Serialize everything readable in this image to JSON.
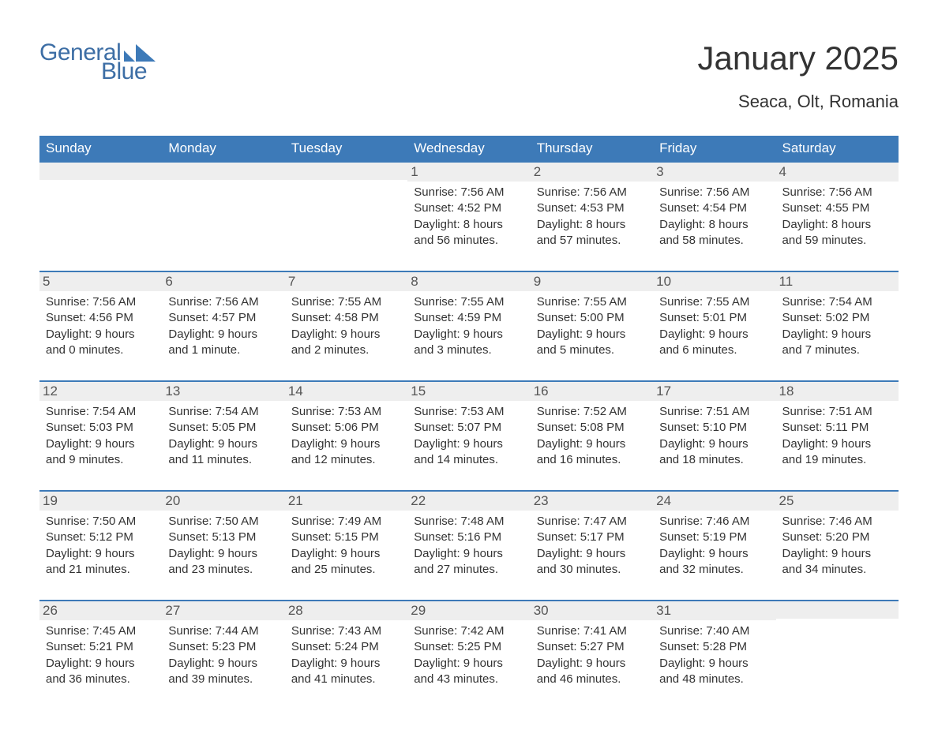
{
  "logo": {
    "text_general": "General",
    "text_blue": "Blue",
    "shape_color": "#3d7ab8"
  },
  "title": "January 2025",
  "location": "Seaca, Olt, Romania",
  "colors": {
    "header_bg": "#3d7ab8",
    "header_text": "#ffffff",
    "daynum_bg": "#eeeeee",
    "daynum_border": "#3d7ab8",
    "body_text": "#333333",
    "logo_text": "#3d6ea5",
    "background": "#ffffff"
  },
  "typography": {
    "title_fontsize": 42,
    "location_fontsize": 22,
    "dow_fontsize": 17,
    "daynum_fontsize": 17,
    "detail_fontsize": 15
  },
  "days_of_week": [
    "Sunday",
    "Monday",
    "Tuesday",
    "Wednesday",
    "Thursday",
    "Friday",
    "Saturday"
  ],
  "weeks": [
    [
      null,
      null,
      null,
      {
        "n": "1",
        "sunrise": "7:56 AM",
        "sunset": "4:52 PM",
        "daylight1": "Daylight: 8 hours",
        "daylight2": "and 56 minutes."
      },
      {
        "n": "2",
        "sunrise": "7:56 AM",
        "sunset": "4:53 PM",
        "daylight1": "Daylight: 8 hours",
        "daylight2": "and 57 minutes."
      },
      {
        "n": "3",
        "sunrise": "7:56 AM",
        "sunset": "4:54 PM",
        "daylight1": "Daylight: 8 hours",
        "daylight2": "and 58 minutes."
      },
      {
        "n": "4",
        "sunrise": "7:56 AM",
        "sunset": "4:55 PM",
        "daylight1": "Daylight: 8 hours",
        "daylight2": "and 59 minutes."
      }
    ],
    [
      {
        "n": "5",
        "sunrise": "7:56 AM",
        "sunset": "4:56 PM",
        "daylight1": "Daylight: 9 hours",
        "daylight2": "and 0 minutes."
      },
      {
        "n": "6",
        "sunrise": "7:56 AM",
        "sunset": "4:57 PM",
        "daylight1": "Daylight: 9 hours",
        "daylight2": "and 1 minute."
      },
      {
        "n": "7",
        "sunrise": "7:55 AM",
        "sunset": "4:58 PM",
        "daylight1": "Daylight: 9 hours",
        "daylight2": "and 2 minutes."
      },
      {
        "n": "8",
        "sunrise": "7:55 AM",
        "sunset": "4:59 PM",
        "daylight1": "Daylight: 9 hours",
        "daylight2": "and 3 minutes."
      },
      {
        "n": "9",
        "sunrise": "7:55 AM",
        "sunset": "5:00 PM",
        "daylight1": "Daylight: 9 hours",
        "daylight2": "and 5 minutes."
      },
      {
        "n": "10",
        "sunrise": "7:55 AM",
        "sunset": "5:01 PM",
        "daylight1": "Daylight: 9 hours",
        "daylight2": "and 6 minutes."
      },
      {
        "n": "11",
        "sunrise": "7:54 AM",
        "sunset": "5:02 PM",
        "daylight1": "Daylight: 9 hours",
        "daylight2": "and 7 minutes."
      }
    ],
    [
      {
        "n": "12",
        "sunrise": "7:54 AM",
        "sunset": "5:03 PM",
        "daylight1": "Daylight: 9 hours",
        "daylight2": "and 9 minutes."
      },
      {
        "n": "13",
        "sunrise": "7:54 AM",
        "sunset": "5:05 PM",
        "daylight1": "Daylight: 9 hours",
        "daylight2": "and 11 minutes."
      },
      {
        "n": "14",
        "sunrise": "7:53 AM",
        "sunset": "5:06 PM",
        "daylight1": "Daylight: 9 hours",
        "daylight2": "and 12 minutes."
      },
      {
        "n": "15",
        "sunrise": "7:53 AM",
        "sunset": "5:07 PM",
        "daylight1": "Daylight: 9 hours",
        "daylight2": "and 14 minutes."
      },
      {
        "n": "16",
        "sunrise": "7:52 AM",
        "sunset": "5:08 PM",
        "daylight1": "Daylight: 9 hours",
        "daylight2": "and 16 minutes."
      },
      {
        "n": "17",
        "sunrise": "7:51 AM",
        "sunset": "5:10 PM",
        "daylight1": "Daylight: 9 hours",
        "daylight2": "and 18 minutes."
      },
      {
        "n": "18",
        "sunrise": "7:51 AM",
        "sunset": "5:11 PM",
        "daylight1": "Daylight: 9 hours",
        "daylight2": "and 19 minutes."
      }
    ],
    [
      {
        "n": "19",
        "sunrise": "7:50 AM",
        "sunset": "5:12 PM",
        "daylight1": "Daylight: 9 hours",
        "daylight2": "and 21 minutes."
      },
      {
        "n": "20",
        "sunrise": "7:50 AM",
        "sunset": "5:13 PM",
        "daylight1": "Daylight: 9 hours",
        "daylight2": "and 23 minutes."
      },
      {
        "n": "21",
        "sunrise": "7:49 AM",
        "sunset": "5:15 PM",
        "daylight1": "Daylight: 9 hours",
        "daylight2": "and 25 minutes."
      },
      {
        "n": "22",
        "sunrise": "7:48 AM",
        "sunset": "5:16 PM",
        "daylight1": "Daylight: 9 hours",
        "daylight2": "and 27 minutes."
      },
      {
        "n": "23",
        "sunrise": "7:47 AM",
        "sunset": "5:17 PM",
        "daylight1": "Daylight: 9 hours",
        "daylight2": "and 30 minutes."
      },
      {
        "n": "24",
        "sunrise": "7:46 AM",
        "sunset": "5:19 PM",
        "daylight1": "Daylight: 9 hours",
        "daylight2": "and 32 minutes."
      },
      {
        "n": "25",
        "sunrise": "7:46 AM",
        "sunset": "5:20 PM",
        "daylight1": "Daylight: 9 hours",
        "daylight2": "and 34 minutes."
      }
    ],
    [
      {
        "n": "26",
        "sunrise": "7:45 AM",
        "sunset": "5:21 PM",
        "daylight1": "Daylight: 9 hours",
        "daylight2": "and 36 minutes."
      },
      {
        "n": "27",
        "sunrise": "7:44 AM",
        "sunset": "5:23 PM",
        "daylight1": "Daylight: 9 hours",
        "daylight2": "and 39 minutes."
      },
      {
        "n": "28",
        "sunrise": "7:43 AM",
        "sunset": "5:24 PM",
        "daylight1": "Daylight: 9 hours",
        "daylight2": "and 41 minutes."
      },
      {
        "n": "29",
        "sunrise": "7:42 AM",
        "sunset": "5:25 PM",
        "daylight1": "Daylight: 9 hours",
        "daylight2": "and 43 minutes."
      },
      {
        "n": "30",
        "sunrise": "7:41 AM",
        "sunset": "5:27 PM",
        "daylight1": "Daylight: 9 hours",
        "daylight2": "and 46 minutes."
      },
      {
        "n": "31",
        "sunrise": "7:40 AM",
        "sunset": "5:28 PM",
        "daylight1": "Daylight: 9 hours",
        "daylight2": "and 48 minutes."
      },
      null
    ]
  ],
  "labels": {
    "sunrise_prefix": "Sunrise: ",
    "sunset_prefix": "Sunset: "
  }
}
